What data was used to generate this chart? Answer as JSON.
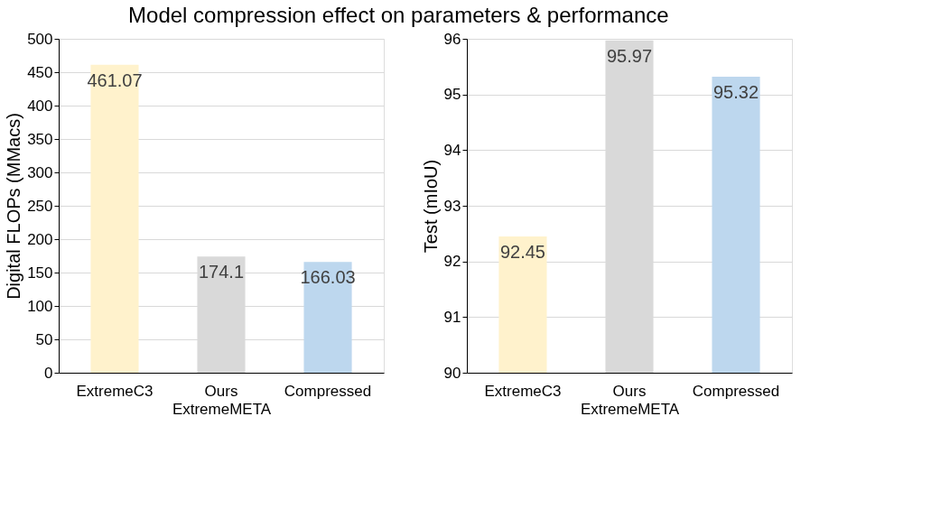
{
  "chart_data": [
    {
      "type": "bar",
      "title": "Model compression effect on parameters & performance",
      "categories": [
        "ExtremeC3",
        "Ours",
        "Compressed"
      ],
      "values": [
        461.07,
        174.1,
        166.03
      ],
      "colors": [
        "#fff2cc",
        "#d9d9d9",
        "#bdd7ee"
      ],
      "xlabel": "ExtremeMETA",
      "ylabel": "Digital FLOPs (MMacs)",
      "ylim": [
        0,
        500
      ],
      "yticks": [
        0,
        50,
        100,
        150,
        200,
        250,
        300,
        350,
        400,
        450,
        500
      ],
      "grid": "y",
      "data_labels": true
    },
    {
      "type": "bar",
      "categories": [
        "ExtremeC3",
        "Ours",
        "Compressed"
      ],
      "values": [
        92.45,
        95.97,
        95.32
      ],
      "colors": [
        "#fff2cc",
        "#d9d9d9",
        "#bdd7ee"
      ],
      "xlabel": "ExtremeMETA",
      "ylabel": "Test (mIoU)",
      "ylim": [
        90,
        96
      ],
      "yticks": [
        90,
        91,
        92,
        93,
        94,
        95,
        96
      ],
      "grid": "y",
      "data_labels": true
    }
  ]
}
